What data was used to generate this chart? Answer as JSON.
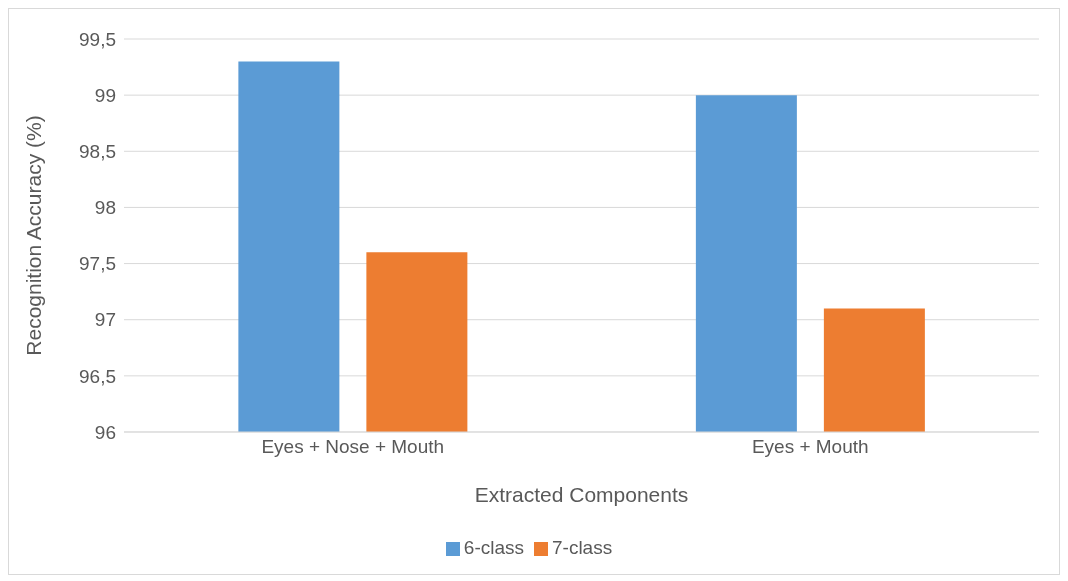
{
  "chart_data": {
    "type": "bar",
    "xlabel": "Extracted Components",
    "ylabel": "Recognition Accuracy (%)",
    "categories": [
      "Eyes + Nose + Mouth",
      "Eyes + Mouth"
    ],
    "series": [
      {
        "name": "6-class",
        "color": "#5b9bd5",
        "values": [
          99.3,
          99.0
        ]
      },
      {
        "name": "7-class",
        "color": "#ed7d31",
        "values": [
          97.6,
          97.1
        ]
      }
    ],
    "ylim": [
      96,
      99.5
    ],
    "yticks": [
      96,
      {
        "value": 96.5,
        "label": "96,5"
      },
      97,
      {
        "value": 97.5,
        "label": "97,5"
      },
      98,
      {
        "value": 98.5,
        "label": "98,5"
      },
      99,
      {
        "value": 99.5,
        "label": "99,5"
      }
    ],
    "grid": "y",
    "legend": "bottom"
  }
}
